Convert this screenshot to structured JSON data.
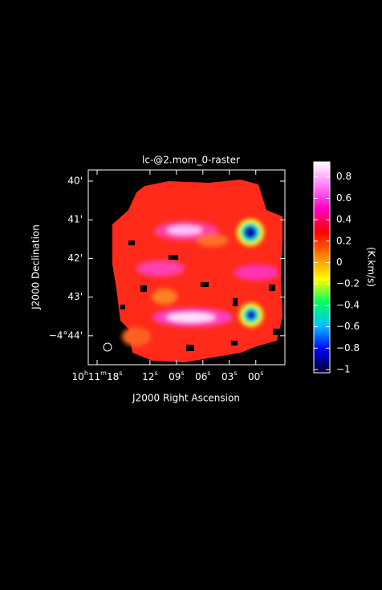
{
  "chart_data": {
    "type": "image",
    "title": "lc-@2.mom_0-raster",
    "x_label": "J2000 Right Ascension",
    "y_label": "J2000 Declination",
    "xlim": [
      19.0,
      -3.3
    ],
    "xticks": [
      {
        "value": 18,
        "label": "10h11m18s"
      },
      {
        "value": 12,
        "label": "12s"
      },
      {
        "value": 9,
        "label": "09s"
      },
      {
        "value": 6,
        "label": "06s"
      },
      {
        "value": 3,
        "label": "03s"
      },
      {
        "value": 0,
        "label": "00s"
      }
    ],
    "ylim": [
      44.75,
      39.71
    ],
    "yticks": [
      {
        "value": 40,
        "label": "40'"
      },
      {
        "value": 41,
        "label": "41'"
      },
      {
        "value": 42,
        "label": "42'"
      },
      {
        "value": 43,
        "label": "43'"
      },
      {
        "value": 44,
        "label": "−4°44'"
      }
    ],
    "colorbar": {
      "label": "(K.km/s)",
      "lim": [
        -1.03,
        0.94
      ],
      "ticks": [
        0.8,
        0.6,
        0.4,
        0.2,
        0,
        -0.2,
        -0.4,
        -0.6,
        -0.8,
        -1
      ],
      "colormap": [
        "#000020",
        "#0000ff",
        "#00c0ff",
        "#00ff60",
        "#ffff00",
        "#ff8000",
        "#ff0000",
        "#ff00c0",
        "#ff80ff",
        "#ffffff"
      ]
    }
  }
}
